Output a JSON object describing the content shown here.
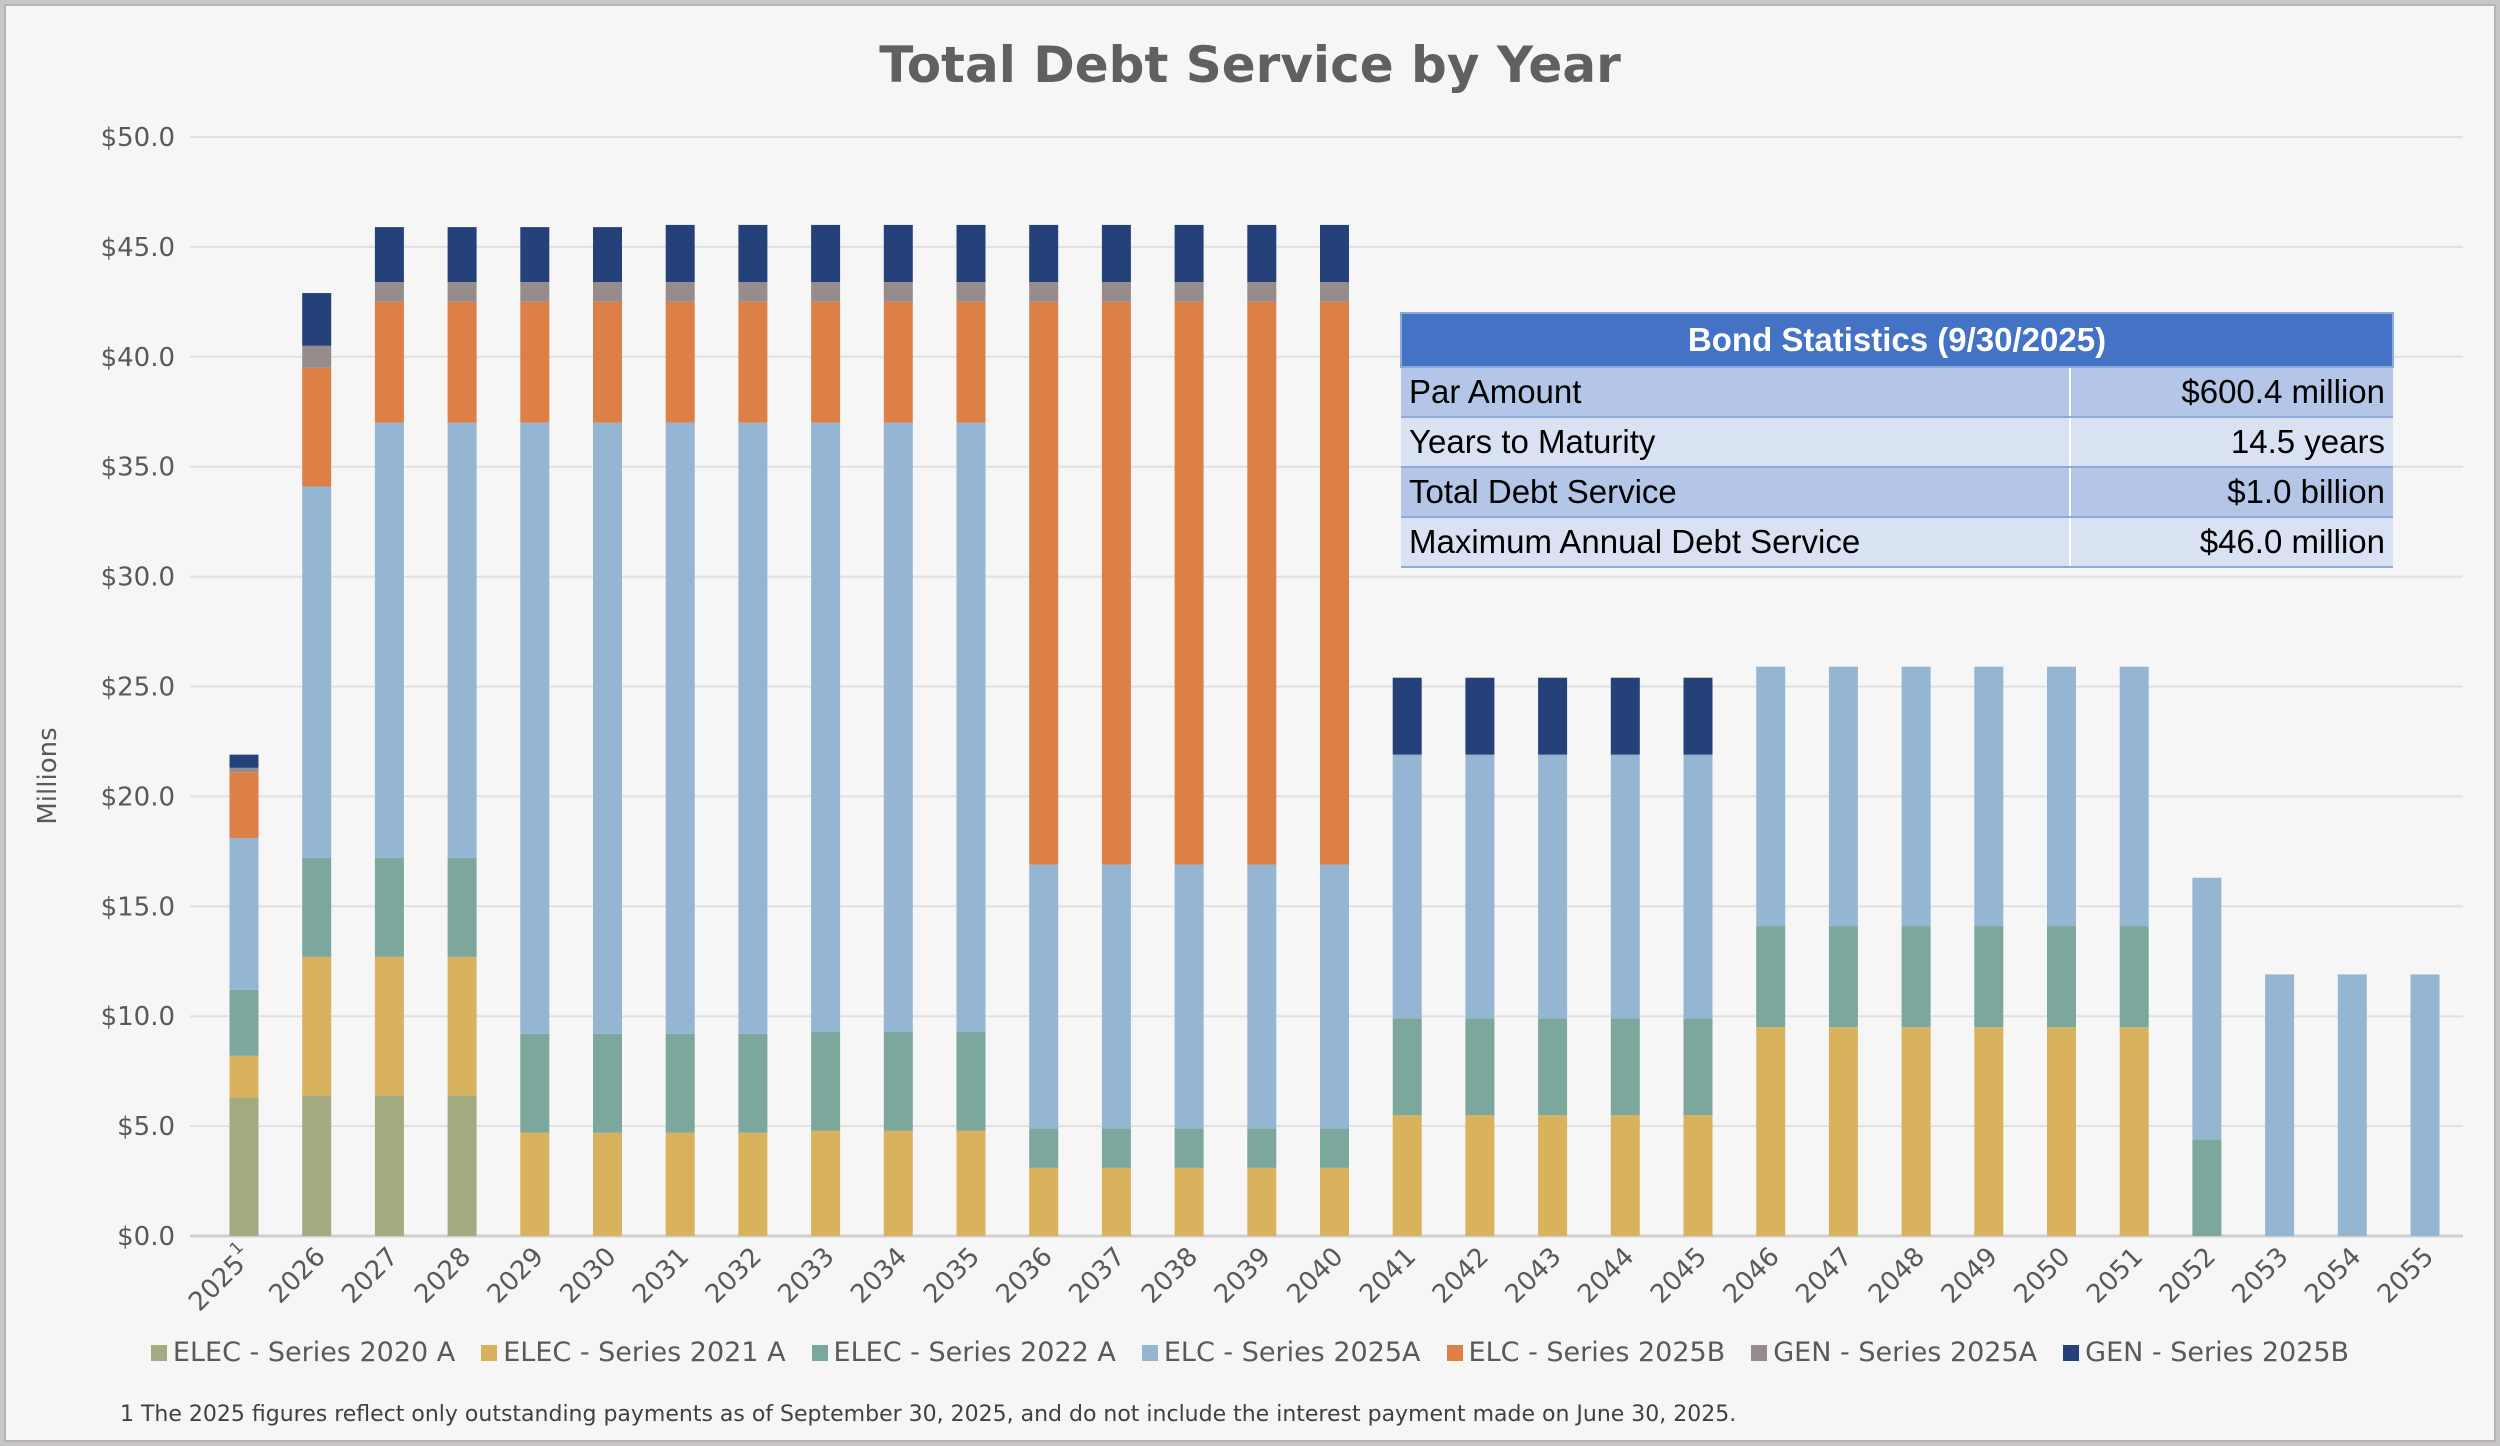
{
  "chart_data": {
    "type": "bar",
    "stacked": true,
    "title": "Total Debt Service by Year",
    "ylabel": "Millions",
    "xlabel": "",
    "ylim": [
      0,
      50
    ],
    "yticks": [
      "$0.0",
      "$5.0",
      "$10.0",
      "$15.0",
      "$20.0",
      "$25.0",
      "$30.0",
      "$35.0",
      "$40.0",
      "$45.0",
      "$50.0"
    ],
    "grid": true,
    "legend_placement": "bottom",
    "categories": [
      "2025",
      "2026",
      "2027",
      "2028",
      "2029",
      "2030",
      "2031",
      "2032",
      "2033",
      "2034",
      "2035",
      "2036",
      "2037",
      "2038",
      "2039",
      "2040",
      "2041",
      "2042",
      "2043",
      "2044",
      "2045",
      "2046",
      "2047",
      "2048",
      "2049",
      "2050",
      "2051",
      "2052",
      "2053",
      "2054",
      "2055"
    ],
    "category_footnote": {
      "2025": "1"
    },
    "series": [
      {
        "name": "ELEC - Series 2020 A",
        "color": "#a5ab81",
        "values": [
          6.3,
          6.4,
          6.4,
          6.4,
          0,
          0,
          0,
          0,
          0,
          0,
          0,
          0,
          0,
          0,
          0,
          0,
          0,
          0,
          0,
          0,
          0,
          0,
          0,
          0,
          0,
          0,
          0,
          0,
          0,
          0,
          0
        ]
      },
      {
        "name": "ELEC - Series 2021 A",
        "color": "#d8b25c",
        "values": [
          1.9,
          6.3,
          6.3,
          6.3,
          4.7,
          4.7,
          4.7,
          4.7,
          4.8,
          4.8,
          4.8,
          3.1,
          3.1,
          3.1,
          3.1,
          3.1,
          5.5,
          5.5,
          5.5,
          5.5,
          5.5,
          9.5,
          9.5,
          9.5,
          9.5,
          9.5,
          9.5,
          0,
          0,
          0,
          0
        ]
      },
      {
        "name": "ELEC - Series 2022 A",
        "color": "#7ba79d",
        "values": [
          3.0,
          4.5,
          4.5,
          4.5,
          4.5,
          4.5,
          4.5,
          4.5,
          4.5,
          4.5,
          4.5,
          1.8,
          1.8,
          1.8,
          1.8,
          1.8,
          4.4,
          4.4,
          4.4,
          4.4,
          4.4,
          4.6,
          4.6,
          4.6,
          4.6,
          4.6,
          4.6,
          4.4,
          0,
          0,
          0
        ]
      },
      {
        "name": "ELC - Series 2025A",
        "color": "#94b6d2",
        "values": [
          6.9,
          16.9,
          19.8,
          19.8,
          27.8,
          27.8,
          27.8,
          27.8,
          27.7,
          27.7,
          27.7,
          12.0,
          12.0,
          12.0,
          12.0,
          12.0,
          12.0,
          12.0,
          12.0,
          12.0,
          12.0,
          11.8,
          11.8,
          11.8,
          11.8,
          11.8,
          11.8,
          11.9,
          11.9,
          11.9,
          11.9
        ]
      },
      {
        "name": "ELC - Series 2025B",
        "color": "#dd8047",
        "values": [
          3.0,
          5.4,
          5.5,
          5.5,
          5.5,
          5.5,
          5.5,
          5.5,
          5.5,
          5.5,
          5.5,
          25.6,
          25.6,
          25.6,
          25.6,
          25.6,
          0,
          0,
          0,
          0,
          0,
          0,
          0,
          0,
          0,
          0,
          0,
          0,
          0,
          0,
          0
        ]
      },
      {
        "name": "GEN - Series 2025A",
        "color": "#968c8c",
        "values": [
          0.2,
          1.0,
          0.9,
          0.9,
          0.9,
          0.9,
          0.9,
          0.9,
          0.9,
          0.9,
          0.9,
          0.9,
          0.9,
          0.9,
          0.9,
          0.9,
          0,
          0,
          0,
          0,
          0,
          0,
          0,
          0,
          0,
          0,
          0,
          0,
          0,
          0,
          0
        ]
      },
      {
        "name": "GEN - Series 2025B",
        "color": "#254179",
        "values": [
          0.6,
          2.4,
          2.5,
          2.5,
          2.5,
          2.5,
          2.6,
          2.6,
          2.6,
          2.6,
          2.6,
          2.6,
          2.6,
          2.6,
          2.6,
          2.6,
          3.5,
          3.5,
          3.5,
          3.5,
          3.5,
          0,
          0,
          0,
          0,
          0,
          0,
          0,
          0,
          0,
          0
        ]
      }
    ],
    "footnote": "1  The 2025 figures reflect only outstanding payments as of September 30, 2025, and do not include the interest payment made on June 30, 2025."
  },
  "stats_table": {
    "title": "Bond Statistics (9/30/2025)",
    "rows": [
      {
        "label": "Par Amount",
        "value": "$600.4 million"
      },
      {
        "label": "Years to Maturity",
        "value": "14.5 years"
      },
      {
        "label": "Total Debt Service",
        "value": "$1.0 billion"
      },
      {
        "label": "Maximum Annual Debt Service",
        "value": "$46.0 million"
      }
    ]
  }
}
